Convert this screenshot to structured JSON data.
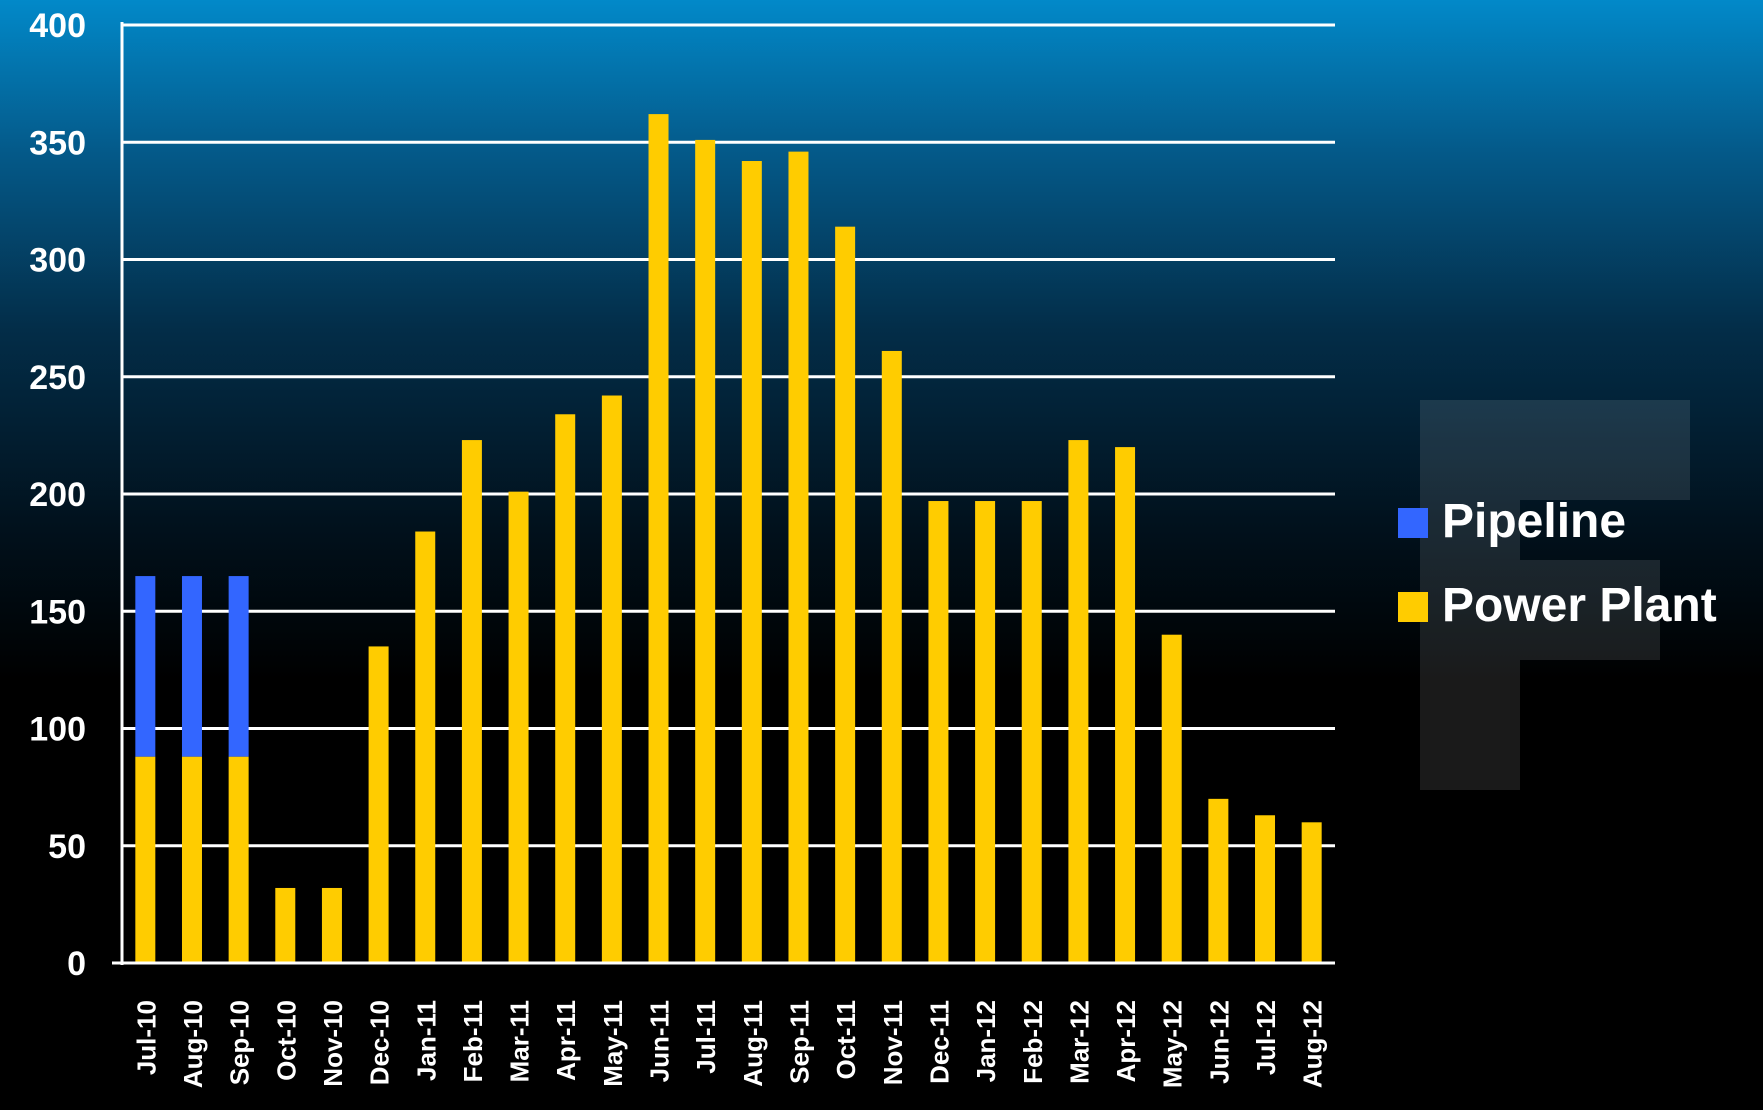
{
  "chart_data": {
    "type": "bar",
    "stacked": true,
    "title": "",
    "xlabel": "",
    "ylabel": "",
    "ylim": [
      0,
      400
    ],
    "yticks": [
      0,
      50,
      100,
      150,
      200,
      250,
      300,
      350,
      400
    ],
    "grid": true,
    "legend_position": "right",
    "categories": [
      "Jul-10",
      "Aug-10",
      "Sep-10",
      "Oct-10",
      "Nov-10",
      "Dec-10",
      "Jan-11",
      "Feb-11",
      "Mar-11",
      "Apr-11",
      "May-11",
      "Jun-11",
      "Jul-11",
      "Aug-11",
      "Sep-11",
      "Oct-11",
      "Nov-11",
      "Dec-11",
      "Jan-12",
      "Feb-12",
      "Mar-12",
      "Apr-12",
      "May-12",
      "Jun-12",
      "Jul-12",
      "Aug-12"
    ],
    "series": [
      {
        "name": "Power Plant",
        "color": "#ffcc00",
        "values": [
          88,
          88,
          88,
          32,
          32,
          135,
          184,
          223,
          201,
          234,
          242,
          362,
          351,
          342,
          346,
          314,
          261,
          197,
          197,
          197,
          223,
          220,
          140,
          70,
          63,
          60
        ]
      },
      {
        "name": "Pipeline",
        "color": "#3366ff",
        "values": [
          77,
          77,
          77,
          0,
          0,
          0,
          0,
          0,
          0,
          0,
          0,
          0,
          0,
          0,
          0,
          0,
          0,
          0,
          0,
          0,
          0,
          0,
          0,
          0,
          0,
          0
        ]
      }
    ],
    "legend": [
      {
        "name": "Pipeline",
        "color": "#3366ff"
      },
      {
        "name": "Power Plant",
        "color": "#ffcc00"
      }
    ],
    "axis_color": "#ffffff",
    "gridline_color": "#ffffff",
    "text_color": "#ffffff"
  }
}
